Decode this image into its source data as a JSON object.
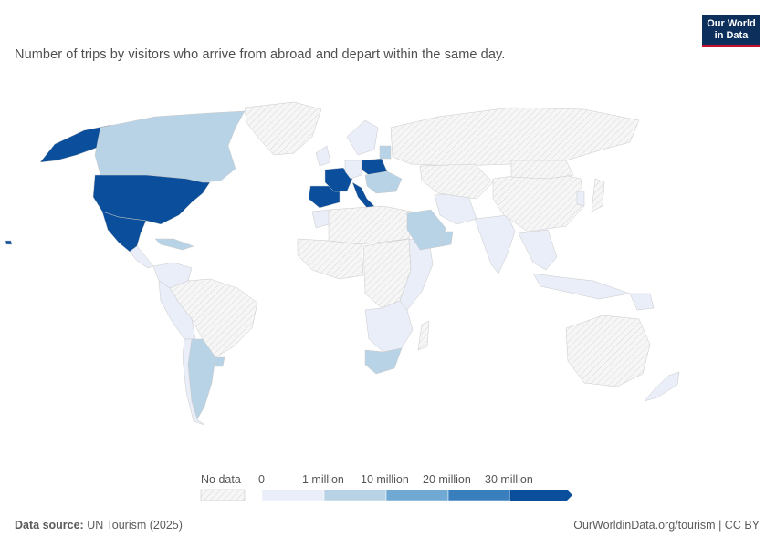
{
  "header": {
    "subtitle": "Number of trips by visitors who arrive from abroad and depart within the same day.",
    "logo_line1": "Our World",
    "logo_line2": "in Data"
  },
  "legend": {
    "no_data_label": "No data",
    "ticks": [
      "0",
      "1 million",
      "10 million",
      "20 million",
      "30 million"
    ],
    "colors": [
      "#e9eef8",
      "#b9d3e6",
      "#6fa9d4",
      "#3a7fbd",
      "#0b4f9c"
    ],
    "no_data_color": "#efefef"
  },
  "footer": {
    "source_label": "Data source:",
    "source_value": "UN Tourism (2025)",
    "right_text": "OurWorldinData.org/tourism | CC BY"
  },
  "map_data": {
    "scale": "binned",
    "regions": [
      {
        "name": "Alaska (United States)",
        "bin": 4
      },
      {
        "name": "Canada",
        "bin": 1
      },
      {
        "name": "Greenland",
        "bin": -1
      },
      {
        "name": "United States",
        "bin": 4
      },
      {
        "name": "Mexico",
        "bin": 4
      },
      {
        "name": "Central America",
        "bin": 0
      },
      {
        "name": "Caribbean",
        "bin": 1
      },
      {
        "name": "Hawaii (United States)",
        "bin": 4
      },
      {
        "name": "Colombia/Venezuela",
        "bin": 0
      },
      {
        "name": "Brazil",
        "bin": -1
      },
      {
        "name": "Andean South America",
        "bin": 0
      },
      {
        "name": "Argentina",
        "bin": 1
      },
      {
        "name": "Uruguay",
        "bin": 1
      },
      {
        "name": "Chile",
        "bin": 0
      },
      {
        "name": "Spain",
        "bin": 4
      },
      {
        "name": "France",
        "bin": 4
      },
      {
        "name": "Italy",
        "bin": 4
      },
      {
        "name": "Poland",
        "bin": 4
      },
      {
        "name": "Germany",
        "bin": 0
      },
      {
        "name": "Scandinavia",
        "bin": 0
      },
      {
        "name": "United Kingdom",
        "bin": 0
      },
      {
        "name": "Baltics",
        "bin": 1
      },
      {
        "name": "Central Europe",
        "bin": 1
      },
      {
        "name": "Russia",
        "bin": -1
      },
      {
        "name": "Morocco",
        "bin": 0
      },
      {
        "name": "North Africa",
        "bin": -1
      },
      {
        "name": "West Africa",
        "bin": -1
      },
      {
        "name": "Central Africa",
        "bin": -1
      },
      {
        "name": "East Africa",
        "bin": 0
      },
      {
        "name": "Southern Africa",
        "bin": 0
      },
      {
        "name": "South Africa",
        "bin": 1
      },
      {
        "name": "Madagascar",
        "bin": -1
      },
      {
        "name": "Saudi Arabia",
        "bin": 1
      },
      {
        "name": "Oman",
        "bin": 1
      },
      {
        "name": "Iran",
        "bin": 0
      },
      {
        "name": "Central Asia",
        "bin": -1
      },
      {
        "name": "India",
        "bin": 0
      },
      {
        "name": "China",
        "bin": -1
      },
      {
        "name": "Mongolia",
        "bin": -1
      },
      {
        "name": "Japan",
        "bin": -1
      },
      {
        "name": "Korea",
        "bin": 0
      },
      {
        "name": "Southeast Asia",
        "bin": 0
      },
      {
        "name": "Indonesia",
        "bin": 0
      },
      {
        "name": "Papua New Guinea",
        "bin": 0
      },
      {
        "name": "Australia",
        "bin": -1
      },
      {
        "name": "New Zealand",
        "bin": 0
      }
    ]
  }
}
